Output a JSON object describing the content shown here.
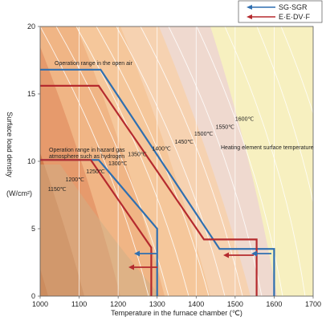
{
  "chart_data": {
    "type": "line",
    "xlabel": "Temperature in the furnace chamber (℃)",
    "ylabel": [
      "Surface load density",
      "(W/cm²)"
    ],
    "xlim": [
      1000,
      1700
    ],
    "ylim": [
      0,
      20
    ],
    "x_ticks": [
      "1000",
      "1100",
      "1200",
      "1300",
      "1400",
      "1500",
      "1600",
      "1700"
    ],
    "y_ticks": [
      "0",
      "5",
      "10",
      "15",
      "20"
    ],
    "grid": "vertical",
    "legend_position": "top-right",
    "series": [
      {
        "name": "SG·SGR",
        "color": "#2f6fb0",
        "lines": [
          {
            "x": [
              1000,
              1155,
              1460,
              1600,
              1600
            ],
            "y": [
              16.8,
              16.8,
              3.5,
              3.5,
              0
            ]
          },
          {
            "x": [
              1000,
              1150,
              1300,
              1300
            ],
            "y": [
              10.1,
              10.1,
              5.0,
              0
            ]
          }
        ]
      },
      {
        "name": "E·E·DV·F",
        "color": "#b52a2e",
        "lines": [
          {
            "x": [
              1000,
              1150,
              1420,
              1555,
              1555
            ],
            "y": [
              15.6,
              15.6,
              4.2,
              4.2,
              0
            ]
          },
          {
            "x": [
              1000,
              1130,
              1285,
              1285
            ],
            "y": [
              10.1,
              10.1,
              3.6,
              0
            ]
          }
        ]
      }
    ],
    "isotherm_labels": [
      "1150℃",
      "1200℃",
      "1250℃",
      "1300℃",
      "1350℃",
      "1400℃",
      "1450℃",
      "1500℃",
      "1550℃",
      "1600℃"
    ],
    "annotations": {
      "open_air": "Operation range in the open air",
      "hazard_gas_line1": "Operation range in hazard gas",
      "hazard_gas_line2": "atmosphere such as hydrogen",
      "heating_element": "Heating element surface temperature"
    },
    "colors": {
      "zone_1": "#c8632e",
      "zone_2": "#d27c4c",
      "zone_3": "#e69a6c",
      "zone_4": "#f0b585",
      "zone_5": "#f5c79b",
      "zone_6": "#f6d2b1",
      "zone_7": "#efd9cf",
      "zone_8": "#f7f0c0",
      "hazard_band": "#d0ae86"
    }
  }
}
